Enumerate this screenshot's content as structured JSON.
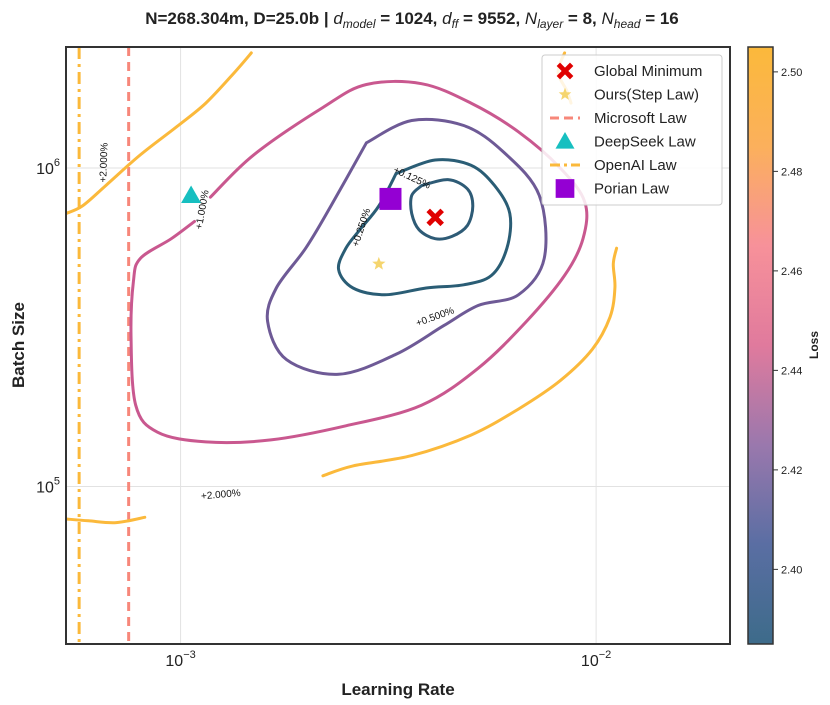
{
  "chart_data": {
    "type": "contour",
    "title": {
      "prefix": "N=268.304m, D=25.0b | ",
      "d_model_label": "d",
      "d_model_sub": "model",
      "d_model_value": " = 1024, ",
      "d_ff_label": "d",
      "d_ff_sub": "ff",
      "d_ff_value": " = 9552, ",
      "n_layer_label": "N",
      "n_layer_sub": "layer",
      "n_layer_value": " = 8, ",
      "n_head_label": "N",
      "n_head_sub": "head",
      "n_head_value": " = 16"
    },
    "xlabel": "Learning Rate",
    "ylabel": "Batch Size",
    "xscale": "log",
    "yscale": "log",
    "xlim": [
      0.00053,
      0.021
    ],
    "ylim": [
      32000,
      2400000
    ],
    "x_ticks": [
      {
        "value": 0.001,
        "base": "10",
        "exp": "−3"
      },
      {
        "value": 0.01,
        "base": "10",
        "exp": "−2"
      }
    ],
    "y_ticks": [
      {
        "value": 100000,
        "base": "10",
        "exp": "5"
      },
      {
        "value": 1000000,
        "base": "10",
        "exp": "6"
      }
    ],
    "grid": true,
    "legend_position": "top-right",
    "legend": [
      {
        "label": "Global Minimum",
        "marker": "x",
        "color": "#e00000"
      },
      {
        "label": "Ours(Step Law)",
        "marker": "star",
        "color": "#f5d56e"
      },
      {
        "label": "Microsoft Law",
        "marker": "dashed-line",
        "color": "#f7877a"
      },
      {
        "label": "DeepSeek Law",
        "marker": "triangle",
        "color": "#17bfc0"
      },
      {
        "label": "OpenAI Law",
        "marker": "dashdot-line",
        "color": "#fbb93b"
      },
      {
        "label": "Porian Law",
        "marker": "square",
        "color": "#9400d3"
      }
    ],
    "points": [
      {
        "name": "Global Minimum",
        "x": 0.0041,
        "y": 700000
      },
      {
        "name": "Ours(Step Law)",
        "x": 0.003,
        "y": 500000
      },
      {
        "name": "DeepSeek Law",
        "x": 0.00106,
        "y": 820000
      },
      {
        "name": "Porian Law",
        "x": 0.0032,
        "y": 800000
      }
    ],
    "vertical_lines": [
      {
        "name": "Microsoft Law",
        "x": 0.00075,
        "style": "dashed",
        "color": "#f7877a"
      },
      {
        "name": "OpenAI Law",
        "x": 0.00057,
        "style": "dashdot",
        "color": "#fbb93b"
      }
    ],
    "contours": [
      {
        "level": "+0.125%",
        "color": "#2e5b76",
        "label": {
          "text": "+0.125%",
          "x": 0.0036,
          "y": 930000,
          "angle": 25
        },
        "segments": [
          [
            [
              0.0038,
              880000
            ],
            [
              0.0044,
              920000
            ],
            [
              0.0049,
              860000
            ],
            [
              0.00505,
              760000
            ],
            [
              0.0049,
              660000
            ],
            [
              0.0045,
              610000
            ],
            [
              0.0041,
              600000
            ],
            [
              0.00375,
              640000
            ],
            [
              0.0036,
              720000
            ],
            [
              0.0036,
              820000
            ],
            [
              0.0038,
              880000
            ]
          ]
        ]
      },
      {
        "level": "+0.250%",
        "color": "#2a5d75",
        "label": {
          "text": "+0.250%",
          "x": 0.00273,
          "y": 650000,
          "angle": -72
        },
        "segments": [
          [
            [
              0.0033,
              960000
            ],
            [
              0.0041,
              1060000
            ],
            [
              0.005,
              1020000
            ],
            [
              0.0057,
              880000
            ],
            [
              0.0062,
              720000
            ],
            [
              0.0061,
              560000
            ],
            [
              0.0056,
              460000
            ],
            [
              0.0048,
              430000
            ],
            [
              0.0039,
              420000
            ],
            [
              0.0031,
              400000
            ],
            [
              0.0026,
              420000
            ],
            [
              0.0024,
              480000
            ],
            [
              0.0025,
              560000
            ],
            [
              0.0027,
              640000
            ],
            [
              0.003,
              760000
            ],
            [
              0.0033,
              960000
            ]
          ]
        ]
      },
      {
        "level": "+0.500%",
        "color": "#6e5a96",
        "label": {
          "text": "+0.500%",
          "x": 0.0041,
          "y": 340000,
          "angle": -20
        },
        "segments": [
          [
            [
              0.0028,
              1200000
            ],
            [
              0.0036,
              1410000
            ],
            [
              0.0048,
              1360000
            ],
            [
              0.006,
              1120000
            ],
            [
              0.0073,
              820000
            ],
            [
              0.0075,
              520000
            ],
            [
              0.0065,
              400000
            ],
            [
              0.0052,
              370000
            ],
            [
              0.0043,
              320000
            ],
            [
              0.0033,
              260000
            ],
            [
              0.0024,
              225000
            ],
            [
              0.0018,
              250000
            ],
            [
              0.00162,
              330000
            ],
            [
              0.0017,
              420000
            ],
            [
              0.002,
              560000
            ],
            [
              0.0023,
              760000
            ],
            [
              0.0028,
              1200000
            ]
          ]
        ]
      },
      {
        "level": "+1.000%",
        "color": "#c9588f",
        "label": {
          "text": "+1.000%",
          "x": 0.00113,
          "y": 740000,
          "angle": -80
        },
        "segments": [
          [
            [
              0.00118,
              810000
            ],
            [
              0.0015,
              1100000
            ],
            [
              0.0022,
              1550000
            ],
            [
              0.0028,
              1830000
            ],
            [
              0.0038,
              1840000
            ],
            [
              0.005,
              1600000
            ],
            [
              0.0065,
              1300000
            ],
            [
              0.0082,
              1000000
            ],
            [
              0.0094,
              780000
            ],
            [
              0.0093,
              600000
            ],
            [
              0.0084,
              460000
            ],
            [
              0.0068,
              330000
            ],
            [
              0.0052,
              235000
            ],
            [
              0.0038,
              180000
            ],
            [
              0.0025,
              155000
            ],
            [
              0.00165,
              140000
            ],
            [
              0.00115,
              138000
            ],
            [
              0.00088,
              148000
            ],
            [
              0.00078,
              180000
            ],
            [
              0.00076,
              300000
            ],
            [
              0.00077,
              440000
            ],
            [
              0.0008,
              520000
            ],
            [
              0.00095,
              600000
            ],
            [
              0.00108,
              680000
            ]
          ]
        ]
      },
      {
        "level": "+2.000%",
        "color": "#fbb93b",
        "label": {
          "text": "+2.000%",
          "x": 0.00125,
          "y": 94000,
          "angle": -5
        },
        "segments": [
          [
            [
              0.00053,
              720000
            ],
            [
              0.00058,
              760000
            ],
            [
              0.00066,
              880000
            ],
            [
              0.0008,
              1100000
            ],
            [
              0.00098,
              1350000
            ],
            [
              0.00115,
              1600000
            ],
            [
              0.00135,
              2000000
            ],
            [
              0.00148,
              2300000
            ]
          ],
          [
            [
              0.00053,
              79000
            ],
            [
              0.0006,
              78000
            ],
            [
              0.0007,
              77000
            ],
            [
              0.00082,
              80000
            ]
          ],
          [
            [
              0.0022,
              108000
            ],
            [
              0.0026,
              116000
            ],
            [
              0.0036,
              125000
            ],
            [
              0.005,
              145000
            ],
            [
              0.0065,
              175000
            ],
            [
              0.0082,
              215000
            ],
            [
              0.0098,
              270000
            ],
            [
              0.0108,
              340000
            ],
            [
              0.0111,
              420000
            ],
            [
              0.011,
              500000
            ],
            [
              0.0112,
              560000
            ]
          ],
          [
            [
              0.0084,
              2300000
            ],
            [
              0.0081,
              2000000
            ],
            [
              0.0085,
              1750000
            ],
            [
              0.0087,
              1600000
            ]
          ]
        ]
      },
      {
        "level": "+2.000%",
        "color": "#fbb93b",
        "label": {
          "text": "+2.000%",
          "x": 0.000655,
          "y": 1040000,
          "angle": -88
        },
        "segments": []
      }
    ],
    "colorbar": {
      "label": "Loss",
      "min": 2.385,
      "max": 2.505,
      "ticks": [
        "2.40",
        "2.42",
        "2.44",
        "2.46",
        "2.48",
        "2.50"
      ],
      "tick_values": [
        2.4,
        2.42,
        2.44,
        2.46,
        2.48,
        2.5
      ],
      "colors": [
        "#3d6b8a",
        "#5a6ea3",
        "#9a78ad",
        "#e07a9d",
        "#f7919a",
        "#fbb05c",
        "#fbb93b"
      ]
    }
  }
}
